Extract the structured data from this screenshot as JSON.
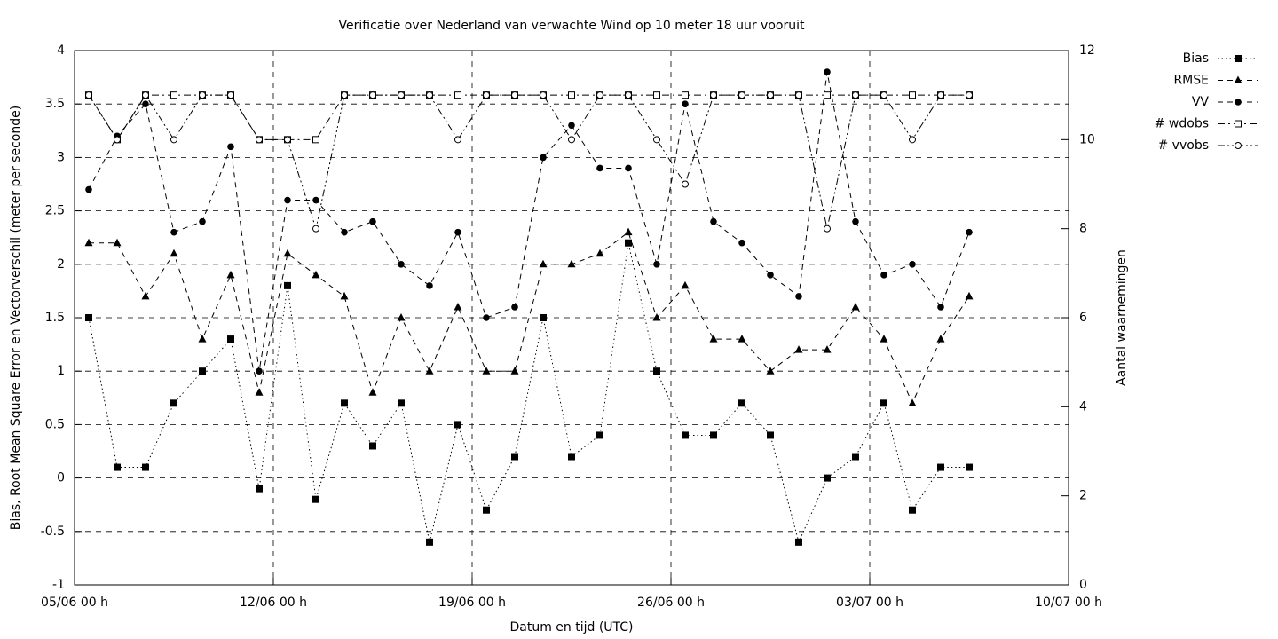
{
  "chart_data": {
    "type": "line",
    "title": "Verificatie over Nederland van verwachte Wind op 10 meter 18 uur vooruit",
    "xlabel": "Datum en tijd (UTC)",
    "ylabel": "Bias, Root Mean Square Error en Vectorverschil (meter per seconde)",
    "y2label": "Aantal waarnemingen",
    "x": [
      "05/06 12 h",
      "06/06 12 h",
      "07/06 12 h",
      "08/06 12 h",
      "09/06 12 h",
      "10/06 12 h",
      "11/06 12 h",
      "12/06 12 h",
      "13/06 12 h",
      "14/06 12 h",
      "15/06 12 h",
      "16/06 12 h",
      "17/06 12 h",
      "18/06 12 h",
      "19/06 12 h",
      "20/06 12 h",
      "21/06 12 h",
      "22/06 12 h",
      "23/06 12 h",
      "24/06 12 h",
      "25/06 12 h",
      "26/06 12 h",
      "27/06 12 h",
      "28/06 12 h",
      "29/06 12 h",
      "30/06 12 h",
      "01/07 12 h",
      "02/07 12 h",
      "03/07 12 h",
      "04/07 12 h",
      "05/07 12 h",
      "06/07 12 h"
    ],
    "xlim": [
      "05/06 00 h",
      "10/07 00 h"
    ],
    "xticks": [
      "05/06 00 h",
      "12/06 00 h",
      "19/06 00 h",
      "26/06 00 h",
      "03/07 00 h",
      "10/07 00 h"
    ],
    "ylim": [
      -1,
      4
    ],
    "yticks": [
      -1,
      -0.5,
      0,
      0.5,
      1,
      1.5,
      2,
      2.5,
      3,
      3.5,
      4
    ],
    "y2lim": [
      0,
      12
    ],
    "y2ticks": [
      0,
      2,
      4,
      6,
      8,
      10,
      12
    ],
    "grid": true,
    "legend": "right",
    "series": [
      {
        "name": "Bias",
        "color": "#000000",
        "marker": "square",
        "dash": "dotted",
        "values": [
          1.5,
          0.1,
          0.1,
          0.7,
          1.0,
          1.3,
          -0.1,
          1.8,
          -0.2,
          0.7,
          0.3,
          0.7,
          -0.6,
          0.5,
          -0.3,
          0.2,
          1.5,
          0.2,
          0.4,
          2.2,
          1.0,
          0.4,
          0.4,
          0.7,
          0.4,
          -0.6,
          0.0,
          0.2,
          0.7,
          -0.3,
          0.1,
          0.1
        ]
      },
      {
        "name": "RMSE",
        "color": "#000000",
        "marker": "triangle",
        "dash": "dashed",
        "values": [
          2.2,
          2.2,
          1.7,
          2.1,
          1.3,
          1.9,
          0.8,
          2.1,
          1.9,
          1.7,
          0.8,
          1.5,
          1.0,
          1.6,
          1.0,
          1.0,
          2.0,
          2.0,
          2.1,
          2.3,
          1.5,
          1.8,
          1.3,
          1.3,
          1.0,
          1.2,
          1.2,
          1.6,
          1.3,
          0.7,
          1.3,
          1.7
        ]
      },
      {
        "name": "VV",
        "color": "#000000",
        "marker": "circle",
        "dash": "dashed",
        "values": [
          2.7,
          3.2,
          3.5,
          2.3,
          2.4,
          3.1,
          1.0,
          2.6,
          2.6,
          2.3,
          2.4,
          2.0,
          1.8,
          2.3,
          1.5,
          1.6,
          3.0,
          3.3,
          2.9,
          2.9,
          2.0,
          3.5,
          2.4,
          2.2,
          1.9,
          1.7,
          3.8,
          2.4,
          1.9,
          2.0,
          1.6,
          2.3
        ]
      },
      {
        "name": "# wdobs",
        "color": "#000000",
        "marker": "open-square",
        "dash": "dash-dot",
        "axis": "y2",
        "values": [
          11,
          10,
          11,
          11,
          11,
          11,
          10,
          10,
          10,
          11,
          11,
          11,
          11,
          11,
          11,
          11,
          11,
          11,
          11,
          11,
          11,
          11,
          11,
          11,
          11,
          11,
          11,
          11,
          11,
          11,
          11,
          11
        ]
      },
      {
        "name": "# vvobs",
        "color": "#000000",
        "marker": "open-circle",
        "dash": "dash-dot-dot",
        "axis": "y2",
        "values": [
          11,
          10,
          11,
          10,
          11,
          11,
          10,
          10,
          8,
          11,
          11,
          11,
          11,
          10,
          11,
          11,
          11,
          10,
          11,
          11,
          10,
          9,
          11,
          11,
          11,
          11,
          8,
          11,
          11,
          10,
          11,
          11
        ]
      }
    ]
  }
}
